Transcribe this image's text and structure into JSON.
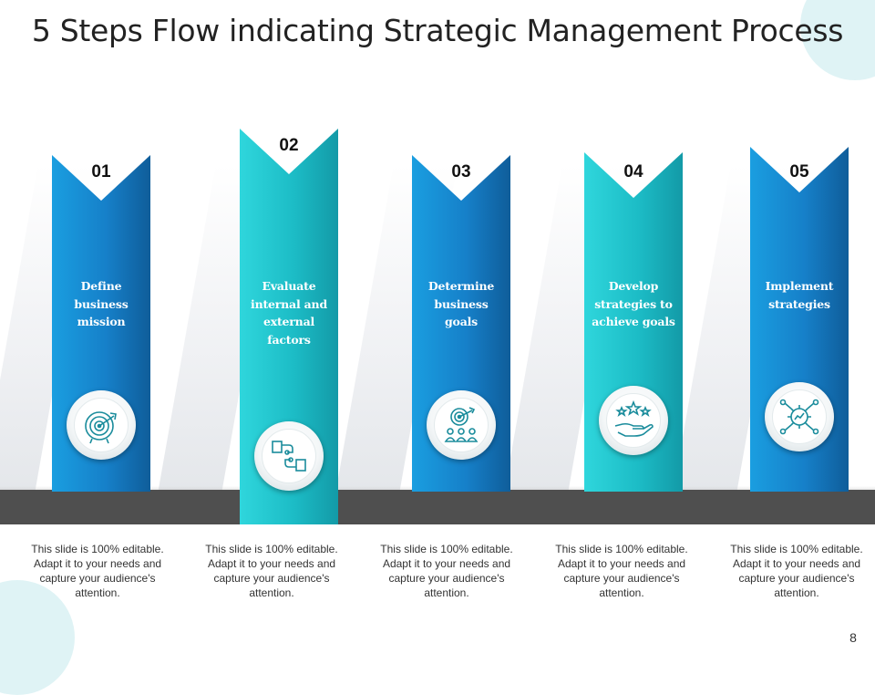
{
  "title": "5 Steps Flow indicating Strategic Management Process",
  "page_number": "8",
  "colors": {
    "blue": "#1a7fc7",
    "teal": "#1fc0c8",
    "floor": "#4f4f4f",
    "icon_stroke": "#1a8c9c"
  },
  "steps": [
    {
      "number": "01",
      "label_lines": [
        "Define",
        "business",
        "mission"
      ],
      "icon": "target-arrow-icon",
      "description": "This slide is 100% editable. Adapt it to your needs and capture your audience's attention."
    },
    {
      "number": "02",
      "label_lines": [
        "Evaluate",
        "internal and",
        "external",
        "factors"
      ],
      "icon": "connected-people-icon",
      "description": "This slide is 100% editable. Adapt it to your needs and capture your audience's attention."
    },
    {
      "number": "03",
      "label_lines": [
        "Determine",
        "business",
        "goals"
      ],
      "icon": "team-target-icon",
      "description": "This slide is 100% editable. Adapt it to your needs and capture your audience's attention."
    },
    {
      "number": "04",
      "label_lines": [
        "Develop",
        "strategies to",
        "achieve goals"
      ],
      "icon": "hand-stars-icon",
      "description": "This slide is 100% editable. Adapt it to your needs and capture your audience's attention."
    },
    {
      "number": "05",
      "label_lines": [
        "Implement",
        "strategies"
      ],
      "icon": "gear-network-icon",
      "description": "This slide is 100% editable. Adapt it to your needs and capture your audience's attention."
    }
  ]
}
